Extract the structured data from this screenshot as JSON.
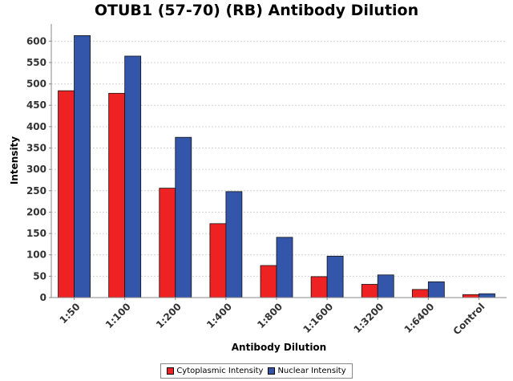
{
  "chart_data": {
    "type": "bar",
    "title": "OTUB1 (57-70) (RB) Antibody Dilution",
    "xlabel": "Antibody Dilution",
    "ylabel": "Intensity",
    "ylim": [
      0,
      640
    ],
    "yticks": [
      0,
      50,
      100,
      150,
      200,
      250,
      300,
      350,
      400,
      450,
      500,
      550,
      600
    ],
    "grid": true,
    "legend_position": "bottom",
    "categories": [
      "1:50",
      "1:100",
      "1:200",
      "1:400",
      "1:800",
      "1:1600",
      "1:3200",
      "1:6400",
      "Control"
    ],
    "series": [
      {
        "name": "Cytoplasmic Intensity",
        "color": "#ee2222",
        "values": [
          484,
          478,
          256,
          173,
          75,
          49,
          31,
          19,
          7
        ]
      },
      {
        "name": "Nuclear Intensity",
        "color": "#3355aa",
        "values": [
          613,
          565,
          375,
          248,
          141,
          97,
          53,
          37,
          9
        ]
      }
    ]
  }
}
